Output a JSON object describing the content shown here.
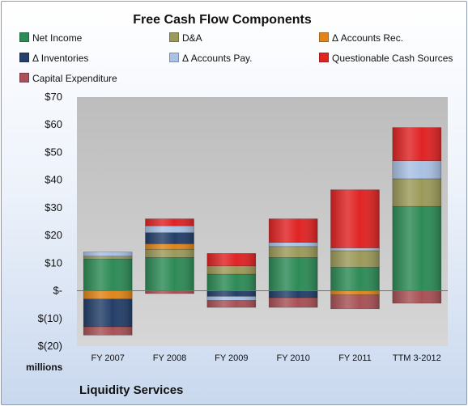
{
  "chart_data": {
    "type": "bar",
    "stacked": true,
    "title": "Free Cash Flow Components",
    "categories": [
      "FY 2007",
      "FY 2008",
      "FY 2009",
      "FY 2010",
      "FY 2011",
      "TTM 3-2012"
    ],
    "ylim": [
      -20,
      70
    ],
    "yticks": [
      70,
      60,
      50,
      40,
      30,
      20,
      10,
      0,
      -10,
      -20
    ],
    "ytick_labels": [
      "$70",
      "$60",
      "$50",
      "$40",
      "$30",
      "$20",
      "$10",
      "$-",
      "$(10)",
      "$(20)"
    ],
    "units_label": "millions",
    "grid": false,
    "legend_position": "top",
    "series": [
      {
        "name": "Net Income",
        "color": "#2e8b57",
        "values": [
          11.5,
          12,
          6,
          12,
          8.5,
          30.5
        ]
      },
      {
        "name": "D&A",
        "color": "#9c9a5a",
        "values": [
          1,
          3,
          3,
          4,
          6,
          10
        ]
      },
      {
        "name": "Δ Accounts Rec.",
        "color": "#e0851a",
        "values": [
          -3,
          2,
          0,
          0,
          -1.5,
          0
        ]
      },
      {
        "name": "Δ Inventories",
        "color": "#243f69",
        "values": [
          -10,
          4,
          -2,
          -2.5,
          0,
          0
        ]
      },
      {
        "name": "Δ Accounts Pay.",
        "color": "#a9c1e3",
        "values": [
          1.5,
          2.5,
          -1.5,
          1.5,
          1,
          6.5
        ]
      },
      {
        "name": "Questionable Cash Sources",
        "color": "#e02424",
        "values": [
          0,
          2.5,
          4.5,
          8.5,
          21,
          12
        ]
      },
      {
        "name": "Capital Expenditure",
        "color": "#a85156",
        "values": [
          -3,
          -1,
          -2.5,
          -3.5,
          -5,
          -4.5
        ]
      }
    ]
  },
  "footer": {
    "units": "millions",
    "company": "Liquidity Services"
  }
}
